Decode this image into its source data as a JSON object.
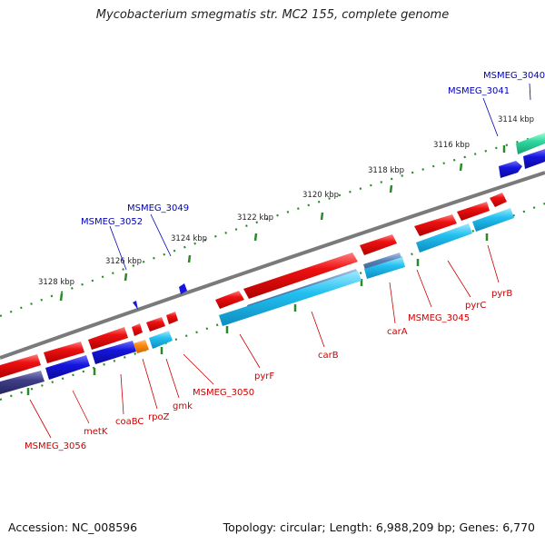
{
  "title": "Mycobacterium smegmatis str. MC2 155, complete genome",
  "footer": {
    "accession": "Accession: NC_008596",
    "topology": "Topology: circular; Length: 6,988,209 bp; Genes: 6,770"
  },
  "ticks": [
    "3114 kbp",
    "3116 kbp",
    "3118 kbp",
    "3120 kbp",
    "3122 kbp",
    "3124 kbp",
    "3126 kbp",
    "3128 kbp"
  ],
  "labels": {
    "top": [
      "MSMEG_3040",
      "MSMEG_3041",
      "MSMEG_3049",
      "MSMEG_3052"
    ],
    "bottom": [
      "MSMEG_3056",
      "metK",
      "coaBC",
      "rpoZ",
      "gmk",
      "MSMEG_3050",
      "pyrF",
      "carB",
      "carA",
      "MSMEG_3045",
      "pyrC",
      "pyrB"
    ]
  },
  "colors": {
    "red": "#ee1111",
    "blue": "#1515dd",
    "navy": "#3f3f88",
    "cyan": "#22c0f0",
    "orange": "#ff8a10",
    "teal": "#2fd8a0",
    "steel": "#5a7fb8",
    "green": "#2a8a2a",
    "backbone": "#7a7a7a",
    "label_red": "#cc0000",
    "label_blue": "#0000bb"
  }
}
